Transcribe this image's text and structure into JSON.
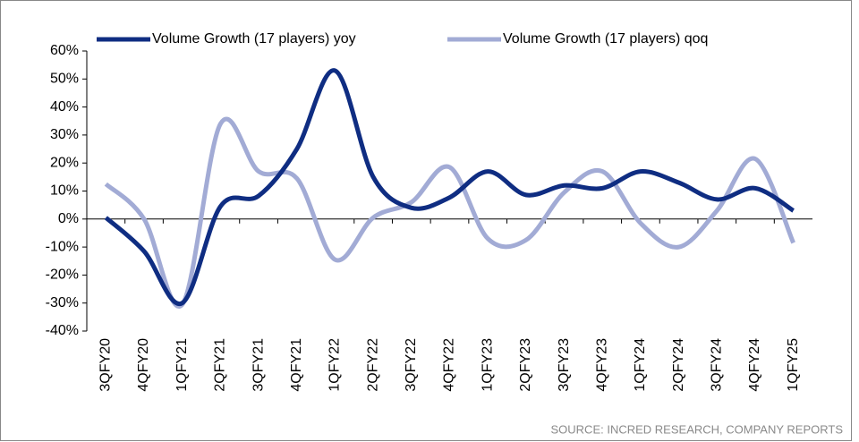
{
  "chart_data": {
    "type": "line",
    "categories": [
      "3QFY20",
      "4QFY20",
      "1QFY21",
      "2QFY21",
      "3QFY21",
      "4QFY21",
      "1QFY22",
      "2QFY22",
      "3QFY22",
      "4QFY22",
      "1QFY23",
      "2QFY23",
      "3QFY23",
      "4QFY23",
      "1QFY24",
      "2QFY24",
      "3QFY24",
      "4QFY24",
      "1QFY25"
    ],
    "series": [
      {
        "name": "Volume Growth (17 players) yoy",
        "color": "#0f2d82",
        "values": [
          0.5,
          -11.5,
          -30,
          4.5,
          8.3,
          25,
          53,
          15,
          4,
          7.7,
          17,
          8.6,
          12,
          11,
          17,
          13,
          7,
          11,
          3
        ]
      },
      {
        "name": "Volume Growth (17 players) qoq",
        "color": "#a2abd5",
        "values": [
          12.5,
          0,
          -30.5,
          34,
          17,
          14.5,
          -14.5,
          0.5,
          6,
          18.5,
          -7,
          -7.5,
          9.5,
          17,
          -1.5,
          -10,
          3,
          21.5,
          -8.5
        ]
      }
    ],
    "ylim": [
      -40,
      60
    ],
    "yticks": [
      {
        "value": -40,
        "label": "-40%"
      },
      {
        "value": -30,
        "label": "-30%"
      },
      {
        "value": -20,
        "label": "-20%"
      },
      {
        "value": -10,
        "label": "-10%"
      },
      {
        "value": 0,
        "label": "0%"
      },
      {
        "value": 10,
        "label": "10%"
      },
      {
        "value": 20,
        "label": "20%"
      },
      {
        "value": 30,
        "label": "30%"
      },
      {
        "value": 40,
        "label": "40%"
      },
      {
        "value": 50,
        "label": "50%"
      },
      {
        "value": 60,
        "label": "60%"
      }
    ],
    "legend": "top",
    "source": "SOURCE: INCRED RESEARCH, COMPANY REPORTS"
  }
}
